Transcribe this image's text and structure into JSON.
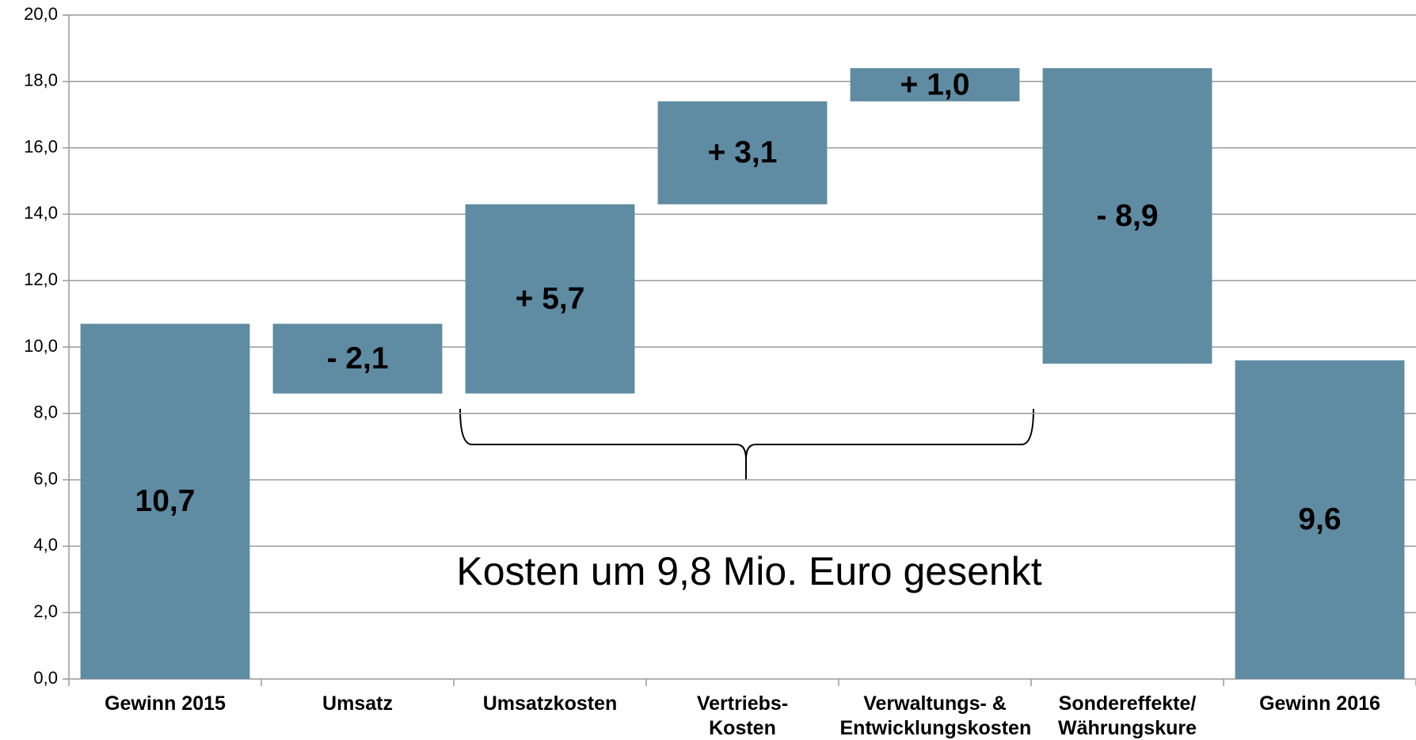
{
  "chart_data": {
    "type": "waterfall",
    "categories": [
      "Gewinn 2015",
      "Umsatz",
      "Umsatzkosten",
      "Vertriebs-\nKosten",
      "Verwaltungs- &\nEntwicklungskosten",
      "Sondereffekte/\nWährungskure",
      "Gewinn 2016"
    ],
    "values": [
      10.7,
      -2.1,
      5.7,
      3.1,
      1.0,
      -8.9,
      9.6
    ],
    "value_labels": [
      "10,7",
      "- 2,1",
      "+ 5,7",
      "+ 3,1",
      "+ 1,0",
      "- 8,9",
      "9,6"
    ],
    "measure": [
      "total",
      "relative",
      "relative",
      "relative",
      "relative",
      "relative",
      "total"
    ],
    "color": "#5f8ca3",
    "ylim": [
      0,
      20
    ],
    "yticks": [
      {
        "value": 0,
        "label": "0,0"
      },
      {
        "value": 2,
        "label": "2,0"
      },
      {
        "value": 4,
        "label": "4,0"
      },
      {
        "value": 6,
        "label": "6,0"
      },
      {
        "value": 8,
        "label": "8,0"
      },
      {
        "value": 10,
        "label": "10,0"
      },
      {
        "value": 12,
        "label": "12,0"
      },
      {
        "value": 14,
        "label": "14,0"
      },
      {
        "value": 16,
        "label": "16,0"
      },
      {
        "value": 18,
        "label": "18,0"
      },
      {
        "value": 20,
        "label": "20,0"
      }
    ],
    "grid": true,
    "annotation": "Kosten um 9,8 Mio. Euro gesenkt"
  }
}
